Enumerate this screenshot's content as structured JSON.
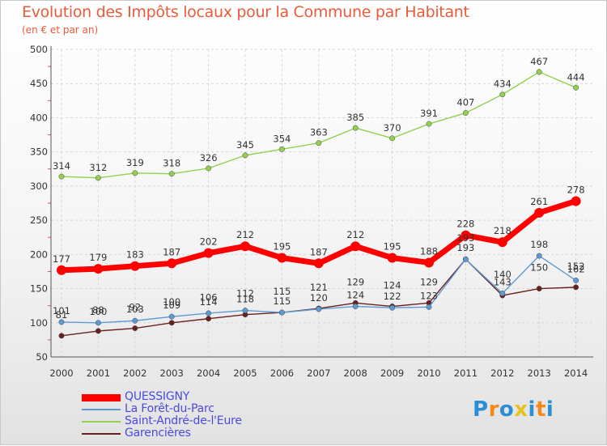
{
  "chart_data": {
    "type": "line",
    "title": "Evolution des Impôts locaux pour la Commune par Habitant",
    "subtitle": "(en € et par an)",
    "xlabel": "",
    "ylabel": "",
    "ylim": [
      50,
      500
    ],
    "yticks": [
      50,
      100,
      150,
      200,
      250,
      300,
      350,
      400,
      450,
      500
    ],
    "categories": [
      "2000",
      "2001",
      "2002",
      "2003",
      "2004",
      "2005",
      "2006",
      "2007",
      "2008",
      "2009",
      "2010",
      "2011",
      "2012",
      "2013",
      "2014"
    ],
    "grid": true,
    "legend_position": "bottom-left",
    "series": [
      {
        "name": "QUESSIGNY",
        "color": "#ff0000",
        "values": [
          177,
          179,
          183,
          187,
          202,
          212,
          195,
          187,
          212,
          195,
          188,
          228,
          218,
          261,
          278
        ],
        "labels": [
          "177",
          "179",
          "183",
          "187",
          "202",
          "212",
          "195",
          "187",
          "212",
          "195",
          "188",
          "228",
          "218",
          "261",
          "278"
        ]
      },
      {
        "name": "La Forêt-du-Parc",
        "color": "#5b9bd5",
        "values": [
          101,
          100,
          103,
          109,
          114,
          118,
          115,
          120,
          124,
          122,
          123,
          193,
          143,
          198,
          162
        ],
        "labels": [
          "101",
          "100",
          "103",
          "109",
          "114",
          "118",
          "115",
          "120",
          "124",
          "122",
          "123",
          "193",
          "143",
          "198",
          "162"
        ]
      },
      {
        "name": "Saint-André-de-l'Eure",
        "color": "#92d050",
        "values": [
          314,
          312,
          319,
          318,
          326,
          345,
          354,
          363,
          385,
          370,
          391,
          407,
          434,
          467,
          444
        ],
        "labels": [
          "314",
          "312",
          "319",
          "318",
          "326",
          "345",
          "354",
          "363",
          "385",
          "370",
          "391",
          "407",
          "434",
          "467",
          "444"
        ]
      },
      {
        "name": "Garencières",
        "color": "#6b2020",
        "values": [
          81,
          88,
          92,
          100,
          106,
          112,
          115,
          121,
          129,
          124,
          129,
          193,
          140,
          150,
          152
        ],
        "labels": [
          "81",
          "88",
          "92",
          "100",
          "106",
          "112",
          "115",
          "121",
          "129",
          "124",
          "129",
          "193",
          "140",
          "150",
          "152"
        ]
      }
    ]
  },
  "logo": {
    "text": "Proxiti",
    "letters": [
      "P",
      "r",
      "o",
      "x",
      "i",
      "t",
      "i"
    ],
    "colors": [
      "#2a8fd6",
      "#f08a1d",
      "#2a8fd6",
      "#e8c21c",
      "#2a8fd6",
      "#f08a1d",
      "#2a8fd6"
    ]
  }
}
